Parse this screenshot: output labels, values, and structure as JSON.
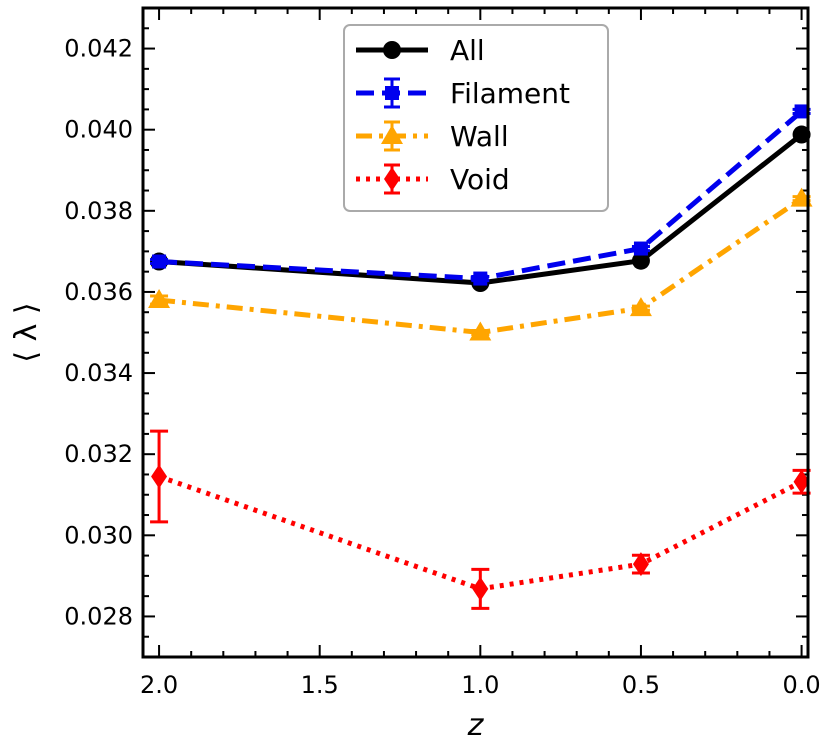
{
  "chart_data": {
    "type": "line",
    "xlabel": "z",
    "ylabel": "⟨ λ ⟩",
    "xlim": [
      2.05,
      -0.02
    ],
    "ylim": [
      0.027,
      0.043
    ],
    "x": [
      2.0,
      1.0,
      0.5,
      0.0
    ],
    "x_major_ticks": [
      2.0,
      1.5,
      1.0,
      0.5,
      0.0
    ],
    "x_tick_labels": [
      "2.0",
      "1.5",
      "1.0",
      "0.5",
      "0.0"
    ],
    "y_major_ticks": [
      0.028,
      0.03,
      0.032,
      0.034,
      0.036,
      0.038,
      0.04,
      0.042
    ],
    "y_tick_labels": [
      "0.028",
      "0.030",
      "0.032",
      "0.034",
      "0.036",
      "0.038",
      "0.040",
      "0.042"
    ],
    "legend_position": "top-center",
    "series": [
      {
        "name": "All",
        "color": "#000000",
        "linestyle": "solid",
        "marker": "circle",
        "values": [
          0.03675,
          0.03622,
          0.03677,
          0.03988
        ],
        "errors": [
          0,
          0,
          0,
          0
        ]
      },
      {
        "name": "Filament",
        "color": "#0000ee",
        "linestyle": "dashed",
        "marker": "square",
        "values": [
          0.03675,
          0.03633,
          0.03707,
          0.04045
        ],
        "errors": [
          5e-05,
          5e-05,
          5e-05,
          5e-05
        ]
      },
      {
        "name": "Wall",
        "color": "#ffa500",
        "linestyle": "dashdot",
        "marker": "triangle",
        "values": [
          0.0358,
          0.035,
          0.0356,
          0.0383
        ],
        "errors": [
          0.0001,
          5e-05,
          5e-05,
          5e-05
        ]
      },
      {
        "name": "Void",
        "color": "#ff0000",
        "linestyle": "dotted",
        "marker": "diamond",
        "values": [
          0.03145,
          0.02868,
          0.02929,
          0.03132
        ],
        "errors": [
          0.00112,
          0.00048,
          0.00022,
          0.00028
        ]
      }
    ]
  }
}
